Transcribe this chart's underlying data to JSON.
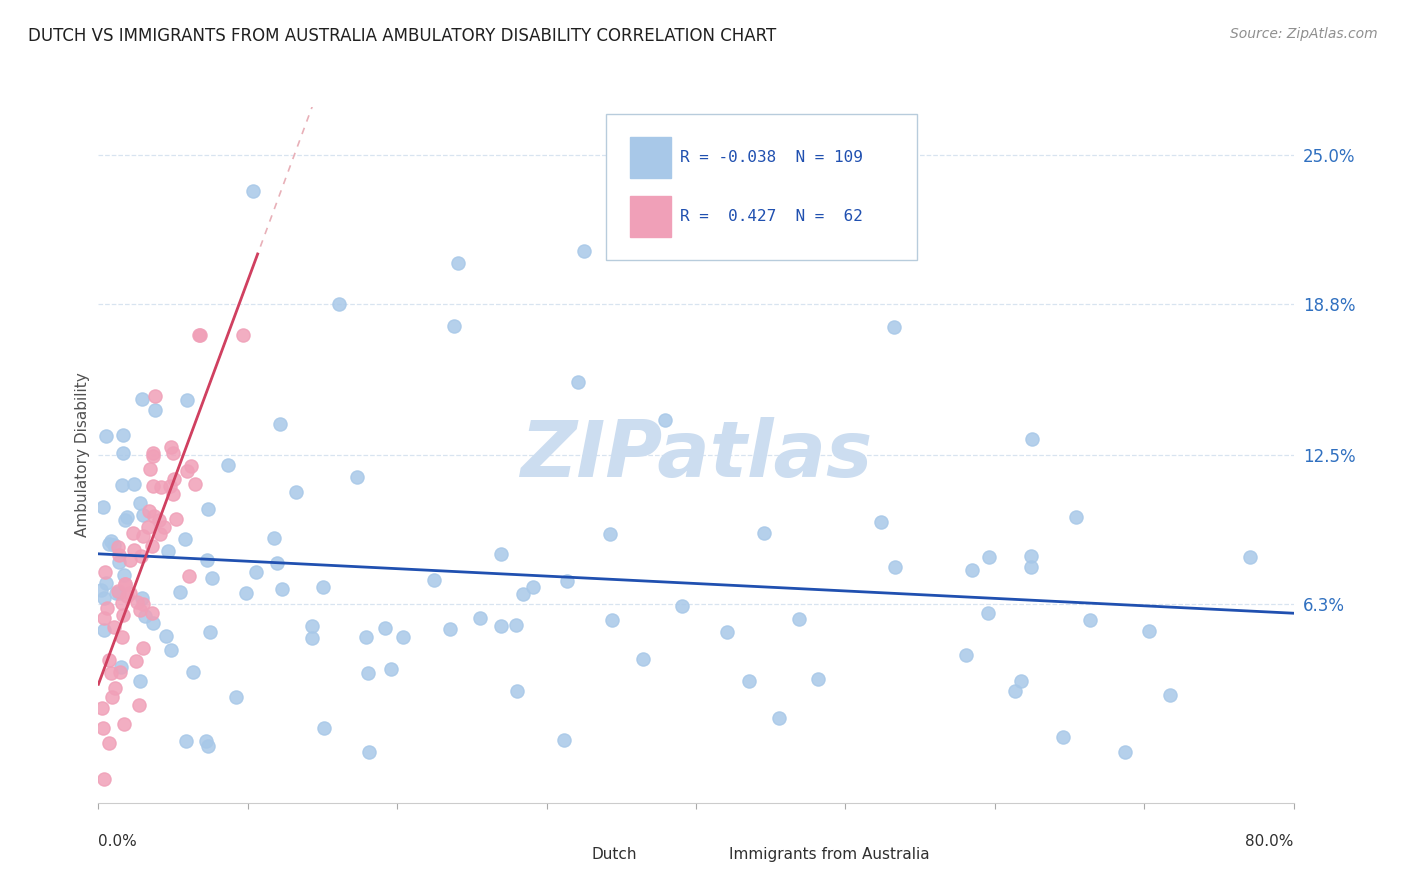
{
  "title": "DUTCH VS IMMIGRANTS FROM AUSTRALIA AMBULATORY DISABILITY CORRELATION CHART",
  "source": "Source: ZipAtlas.com",
  "ylabel": "Ambulatory Disability",
  "xlim": [
    0.0,
    0.8
  ],
  "ylim": [
    -0.02,
    0.27
  ],
  "yticks": [
    0.063,
    0.125,
    0.188,
    0.25
  ],
  "ytick_labels": [
    "6.3%",
    "12.5%",
    "18.8%",
    "25.0%"
  ],
  "dutch_R": -0.038,
  "dutch_N": 109,
  "aus_R": 0.427,
  "aus_N": 62,
  "dutch_color": "#a8c8e8",
  "aus_color": "#f0a0b8",
  "dutch_line_color": "#2050b0",
  "aus_line_color": "#d04060",
  "diag_line_color": "#e8b0b8",
  "watermark": "ZIPatlas",
  "watermark_color": "#ccddf0",
  "background_color": "#ffffff",
  "grid_color": "#d8e4f0",
  "title_color": "#202020",
  "right_label_color": "#3070c0",
  "seed": 42
}
